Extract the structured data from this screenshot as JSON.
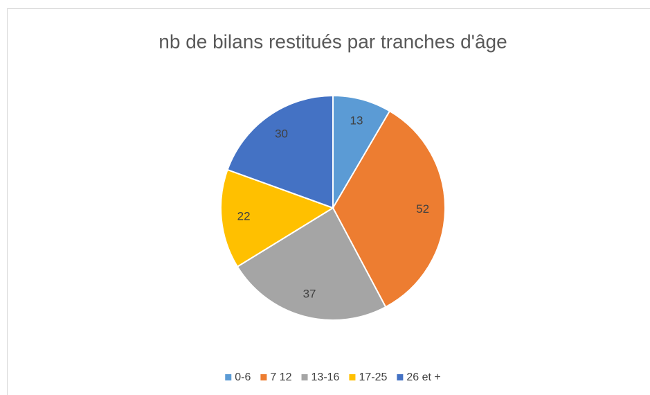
{
  "chart_data": {
    "type": "pie",
    "title": "nb de bilans restitués par tranches d'âge",
    "categories": [
      "0-6",
      "7 12",
      "13-16",
      "17-25",
      "26 et +"
    ],
    "values": [
      13,
      52,
      37,
      22,
      30
    ],
    "colors": [
      "#5b9bd5",
      "#ed7d31",
      "#a5a5a5",
      "#ffc000",
      "#4472c4"
    ],
    "legend": "bottom"
  }
}
